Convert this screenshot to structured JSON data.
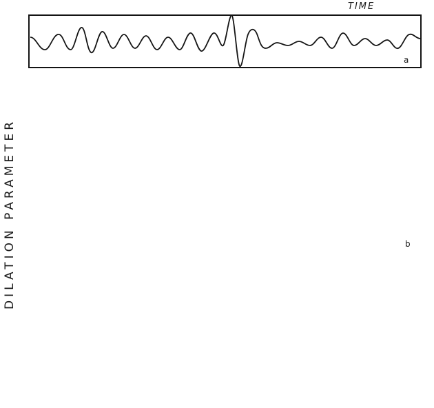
{
  "labels": {
    "time_axis": "TIME",
    "dilation_axis": "DILATION PARAMETER",
    "panel_a": "a",
    "panel_b": "b"
  },
  "colors": {
    "ink": "#141414",
    "paper": "#ffffff",
    "stipple": "#3a3a3a"
  },
  "icons": {
    "time_arrow": "arrow-right-icon"
  }
}
